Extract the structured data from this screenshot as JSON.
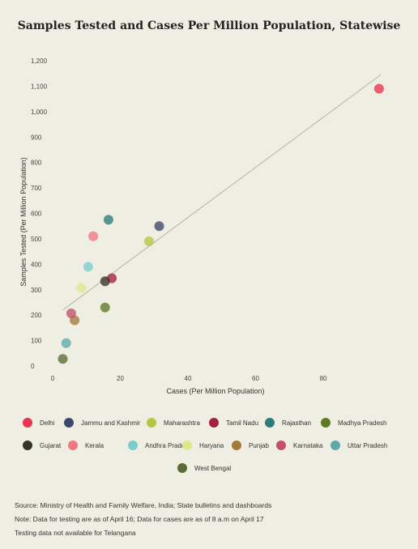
{
  "chart_data": {
    "type": "scatter",
    "title": "Samples Tested and Cases Per Million Population, Statewise",
    "xlabel": "Cases (Per Million Population)",
    "ylabel": "Samples Tested (Per Million Population)",
    "xlim": [
      0,
      97
    ],
    "ylim": [
      0,
      1200
    ],
    "xticks": [
      "0",
      "20",
      "40",
      "60",
      "80"
    ],
    "xtick_values": [
      0,
      20,
      40,
      60,
      80
    ],
    "yticks": [
      "0",
      "100",
      "200",
      "300",
      "400",
      "500",
      "600",
      "700",
      "800",
      "900",
      "1,000",
      "1,100",
      "1,200"
    ],
    "ytick_values": [
      0,
      100,
      200,
      300,
      400,
      500,
      600,
      700,
      800,
      900,
      1000,
      1100,
      1200
    ],
    "trendline": {
      "x": [
        3,
        97
      ],
      "y": [
        220,
        1145
      ]
    },
    "series": [
      {
        "name": "Delhi",
        "color": "#e8344e",
        "x": 96.5,
        "y": 1090
      },
      {
        "name": "Jammu and Kashmir",
        "color": "#3b4a6b",
        "x": 31.5,
        "y": 550
      },
      {
        "name": "Maharashtra",
        "color": "#b4c640",
        "x": 28.5,
        "y": 490
      },
      {
        "name": "Tamil Nadu",
        "color": "#a41f45",
        "x": 17.5,
        "y": 345
      },
      {
        "name": "Rajasthan",
        "color": "#2f7a7a",
        "x": 16.5,
        "y": 575
      },
      {
        "name": "Madhya Pradesh",
        "color": "#5e7a22",
        "x": 15.5,
        "y": 230
      },
      {
        "name": "Gujarat",
        "color": "#3a3226",
        "x": 15.5,
        "y": 333
      },
      {
        "name": "Kerala",
        "color": "#ee7983",
        "x": 12,
        "y": 510
      },
      {
        "name": "Andhra Pradesh",
        "color": "#79cdcd",
        "x": 10.5,
        "y": 390
      },
      {
        "name": "Haryana",
        "color": "#dde88a",
        "x": 8.5,
        "y": 307
      },
      {
        "name": "Punjab",
        "color": "#a47a3c",
        "x": 6.5,
        "y": 180
      },
      {
        "name": "Karnataka",
        "color": "#c4506b",
        "x": 5.5,
        "y": 207
      },
      {
        "name": "Uttar Pradesh",
        "color": "#5fa9a9",
        "x": 4,
        "y": 90
      },
      {
        "name": "West Bengal",
        "color": "#5a6b33",
        "x": 3,
        "y": 28
      }
    ]
  },
  "notes": [
    "Source: Ministry of Health and Family Welfare, India; State bulletins and dashboards",
    "Note: Data for testing are as of April 16; Data for cases are as of 8 a.m on April 17",
    "Testing data not available for Telangana"
  ]
}
